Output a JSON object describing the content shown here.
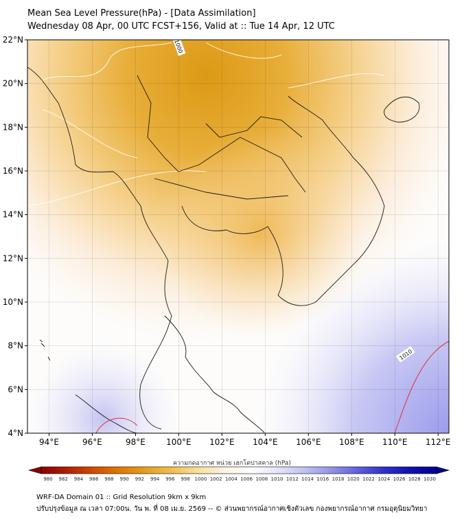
{
  "header": {
    "title": "Mean Sea Level Pressure(hPa) - [Data Assimilation]",
    "subtitle": "Wednesday 08 Apr, 00 UTC FCST+156, Valid at :: Tue 14 Apr, 12 UTC"
  },
  "map": {
    "lat_range": [
      4,
      22
    ],
    "lon_range": [
      93,
      112.5
    ],
    "lat_ticks": [
      {
        "value": 4,
        "label": "4°N"
      },
      {
        "value": 6,
        "label": "6°N"
      },
      {
        "value": 8,
        "label": "8°N"
      },
      {
        "value": 10,
        "label": "10°N"
      },
      {
        "value": 12,
        "label": "12°N"
      },
      {
        "value": 14,
        "label": "14°N"
      },
      {
        "value": 16,
        "label": "16°N"
      },
      {
        "value": 18,
        "label": "18°N"
      },
      {
        "value": 20,
        "label": "20°N"
      },
      {
        "value": 22,
        "label": "22°N"
      }
    ],
    "lon_ticks": [
      {
        "value": 94,
        "label": "94°E"
      },
      {
        "value": 96,
        "label": "96°E"
      },
      {
        "value": 98,
        "label": "98°E"
      },
      {
        "value": 100,
        "label": "100°E"
      },
      {
        "value": 102,
        "label": "102°E"
      },
      {
        "value": 104,
        "label": "104°E"
      },
      {
        "value": 106,
        "label": "106°E"
      },
      {
        "value": 108,
        "label": "108°E"
      },
      {
        "value": 110,
        "label": "110°E"
      },
      {
        "value": 112,
        "label": "112°E"
      }
    ],
    "contour_labels": [
      {
        "text": "1000",
        "lon": 100,
        "lat": 21.7
      },
      {
        "text": "1010",
        "lon": 110.5,
        "lat": 7.6
      }
    ],
    "colors": {
      "low": "#d9960b",
      "mid": "#ffffff",
      "high": "#5a5ae0",
      "contour_high": "#e03030",
      "border": "#1a1a1a"
    }
  },
  "colorbar": {
    "label": "ความกดอากาศ หน่วย เฮกโตปาสคาล (hPa)",
    "ticks": [
      "980",
      "982",
      "984",
      "986",
      "988",
      "990",
      "992",
      "994",
      "996",
      "998",
      "1000",
      "1002",
      "1004",
      "1006",
      "1008",
      "1010",
      "1012",
      "1014",
      "1016",
      "1018",
      "1020",
      "1022",
      "1024",
      "1026",
      "1028",
      "1030"
    ],
    "colors_low": [
      "#8b0000",
      "#b22000",
      "#d34a00",
      "#e07a00",
      "#e6a020",
      "#f0c050",
      "#f8e0a0",
      "#fdf4e4"
    ],
    "colors_high": [
      "#ffffff",
      "#e4e4fa",
      "#c0c0f2",
      "#9494e8",
      "#6060dc",
      "#3030cc",
      "#1010b0",
      "#000090"
    ]
  },
  "footer": {
    "line1": "WRF-DA Domain 01 :: Grid Resolution 9km x 9km",
    "line2": "ปรับปรุงข้อมูล ณ เวลา 07:00น. วัน พ. ที่ 08 เม.ย. 2569 -- © ส่วนพยากรณ์อากาศเชิงตัวเลข กองพยากรณ์อากาศ กรมอุตุนิยมวิทยา"
  }
}
